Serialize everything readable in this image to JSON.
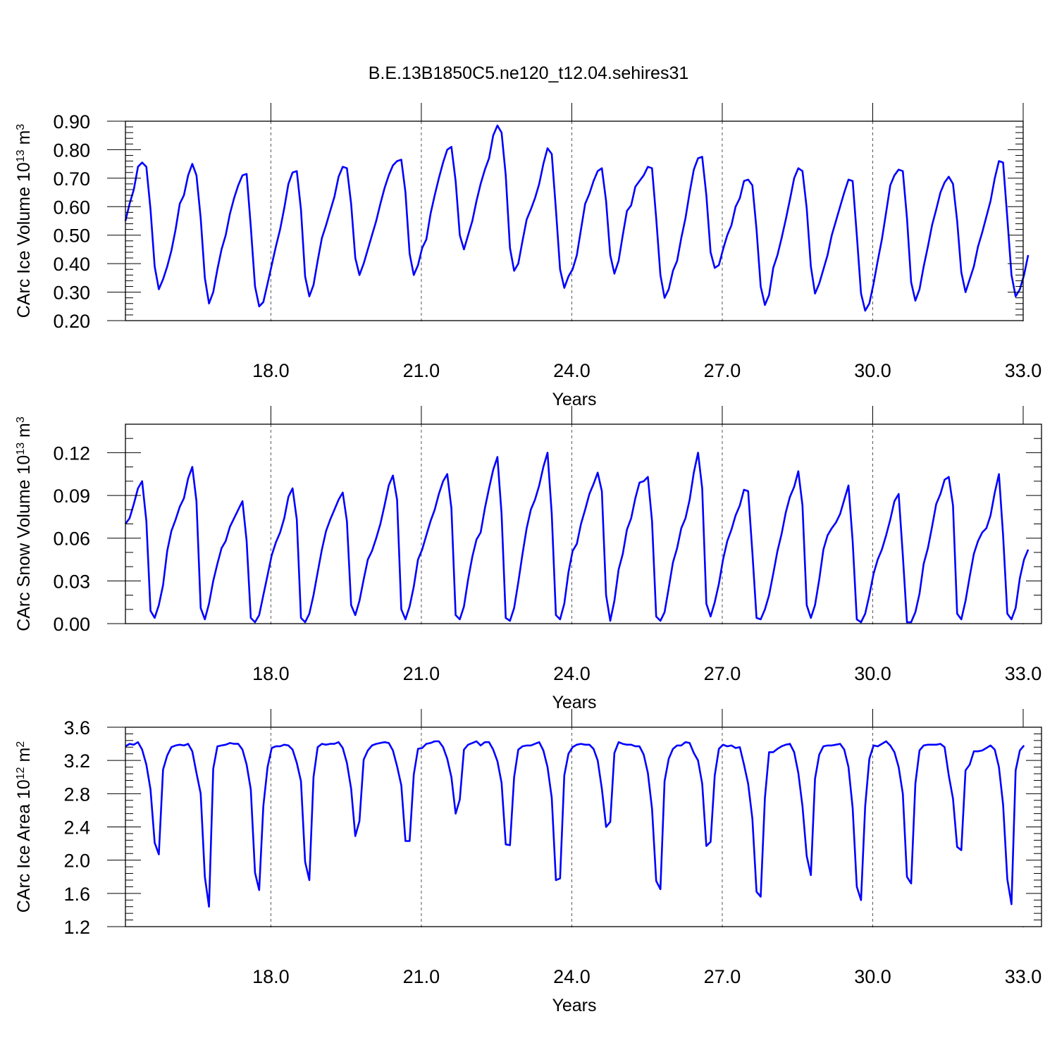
{
  "title": "B.E.13B1850C5.ne120_t12.04.sehires31",
  "chart_data": [
    {
      "type": "line",
      "ylabel": {
        "text": "CArc Ice Volume 10",
        "exp": "13",
        "unit": " m",
        "unit_exp": "3"
      },
      "xlabel": "Years",
      "xlim": [
        15.1,
        33.0
      ],
      "ylim": [
        0.2,
        0.9
      ],
      "xticks": [
        18.0,
        21.0,
        24.0,
        27.0,
        30.0,
        33.0
      ],
      "xtick_labels": [
        "18.0",
        "21.0",
        "24.0",
        "27.0",
        "30.0",
        "33.0"
      ],
      "yticks": [
        0.2,
        0.3,
        0.4,
        0.5,
        0.6,
        0.7,
        0.8,
        0.9
      ],
      "ytick_labels": [
        "0.20",
        "0.30",
        "0.40",
        "0.50",
        "0.60",
        "0.70",
        "0.80",
        "0.90"
      ],
      "ytick_minor_step": 0.02,
      "grid": "vertical dashed at major x ticks",
      "series": [
        {
          "color": "#0000ff",
          "x_start": 15.1,
          "x_step": 0.0833333,
          "values": [
            0.55,
            0.61,
            0.66,
            0.74,
            0.755,
            0.74,
            0.59,
            0.39,
            0.31,
            0.345,
            0.39,
            0.445,
            0.52,
            0.61,
            0.64,
            0.71,
            0.75,
            0.71,
            0.56,
            0.35,
            0.26,
            0.3,
            0.38,
            0.45,
            0.5,
            0.575,
            0.63,
            0.675,
            0.71,
            0.715,
            0.53,
            0.32,
            0.25,
            0.265,
            0.33,
            0.395,
            0.46,
            0.52,
            0.595,
            0.68,
            0.72,
            0.725,
            0.59,
            0.355,
            0.285,
            0.325,
            0.41,
            0.49,
            0.535,
            0.585,
            0.635,
            0.705,
            0.74,
            0.735,
            0.61,
            0.42,
            0.36,
            0.4,
            0.45,
            0.5,
            0.55,
            0.61,
            0.665,
            0.71,
            0.745,
            0.76,
            0.765,
            0.65,
            0.435,
            0.36,
            0.395,
            0.455,
            0.485,
            0.575,
            0.64,
            0.7,
            0.755,
            0.8,
            0.81,
            0.69,
            0.5,
            0.45,
            0.5,
            0.55,
            0.62,
            0.68,
            0.73,
            0.77,
            0.85,
            0.885,
            0.86,
            0.71,
            0.455,
            0.375,
            0.4,
            0.48,
            0.555,
            0.59,
            0.63,
            0.68,
            0.75,
            0.805,
            0.785,
            0.59,
            0.38,
            0.315,
            0.355,
            0.38,
            0.43,
            0.52,
            0.61,
            0.645,
            0.69,
            0.725,
            0.735,
            0.62,
            0.43,
            0.365,
            0.41,
            0.5,
            0.585,
            0.605,
            0.67,
            0.69,
            0.71,
            0.74,
            0.735,
            0.56,
            0.36,
            0.28,
            0.31,
            0.375,
            0.41,
            0.49,
            0.56,
            0.65,
            0.73,
            0.77,
            0.775,
            0.64,
            0.44,
            0.385,
            0.395,
            0.45,
            0.5,
            0.535,
            0.6,
            0.63,
            0.69,
            0.695,
            0.675,
            0.52,
            0.32,
            0.255,
            0.29,
            0.385,
            0.43,
            0.49,
            0.555,
            0.625,
            0.7,
            0.735,
            0.725,
            0.595,
            0.39,
            0.295,
            0.33,
            0.38,
            0.43,
            0.5,
            0.55,
            0.6,
            0.65,
            0.695,
            0.69,
            0.5,
            0.295,
            0.235,
            0.26,
            0.33,
            0.41,
            0.485,
            0.58,
            0.675,
            0.71,
            0.73,
            0.725,
            0.56,
            0.335,
            0.27,
            0.31,
            0.39,
            0.46,
            0.535,
            0.59,
            0.65,
            0.685,
            0.705,
            0.68,
            0.55,
            0.37,
            0.3,
            0.345,
            0.39,
            0.46,
            0.51,
            0.565,
            0.62,
            0.7,
            0.76,
            0.755,
            0.56,
            0.36,
            0.285,
            0.31,
            0.36,
            0.43
          ]
        }
      ]
    },
    {
      "type": "line",
      "ylabel": {
        "text": "CArc Snow Volume 10",
        "exp": "13",
        "unit": " m",
        "unit_exp": "3"
      },
      "xlabel": "Years",
      "xlim": [
        15.1,
        33.0
      ],
      "ylim": [
        0.0,
        0.14
      ],
      "xticks": [
        18.0,
        21.0,
        24.0,
        27.0,
        30.0,
        33.0
      ],
      "xtick_labels": [
        "18.0",
        "21.0",
        "24.0",
        "27.0",
        "30.0",
        "33.0"
      ],
      "yticks": [
        0.0,
        0.03,
        0.06,
        0.09,
        0.12
      ],
      "ytick_labels": [
        "0.00",
        "0.03",
        "0.06",
        "0.09",
        "0.12"
      ],
      "ytick_minor_step": 0.01,
      "grid": "vertical dashed at major x ticks",
      "series": [
        {
          "color": "#0000ff",
          "x_start": 15.1,
          "x_step": 0.0833333,
          "values": [
            0.07,
            0.074,
            0.084,
            0.095,
            0.1,
            0.072,
            0.009,
            0.004,
            0.013,
            0.027,
            0.051,
            0.065,
            0.073,
            0.082,
            0.088,
            0.102,
            0.11,
            0.086,
            0.011,
            0.003,
            0.014,
            0.03,
            0.042,
            0.053,
            0.058,
            0.068,
            0.074,
            0.08,
            0.086,
            0.058,
            0.004,
            0.001,
            0.006,
            0.02,
            0.034,
            0.048,
            0.057,
            0.064,
            0.074,
            0.089,
            0.095,
            0.073,
            0.004,
            0.001,
            0.007,
            0.02,
            0.036,
            0.052,
            0.065,
            0.073,
            0.08,
            0.087,
            0.092,
            0.072,
            0.013,
            0.006,
            0.016,
            0.031,
            0.045,
            0.051,
            0.06,
            0.07,
            0.083,
            0.097,
            0.104,
            0.087,
            0.01,
            0.003,
            0.012,
            0.026,
            0.045,
            0.052,
            0.062,
            0.072,
            0.08,
            0.091,
            0.1,
            0.105,
            0.081,
            0.006,
            0.003,
            0.012,
            0.031,
            0.047,
            0.059,
            0.064,
            0.081,
            0.095,
            0.108,
            0.117,
            0.077,
            0.004,
            0.002,
            0.011,
            0.029,
            0.049,
            0.067,
            0.08,
            0.087,
            0.097,
            0.11,
            0.12,
            0.077,
            0.006,
            0.003,
            0.014,
            0.036,
            0.051,
            0.056,
            0.07,
            0.08,
            0.091,
            0.098,
            0.106,
            0.093,
            0.02,
            0.002,
            0.016,
            0.038,
            0.049,
            0.066,
            0.074,
            0.088,
            0.099,
            0.1,
            0.103,
            0.072,
            0.005,
            0.002,
            0.008,
            0.025,
            0.043,
            0.053,
            0.067,
            0.074,
            0.087,
            0.106,
            0.12,
            0.095,
            0.014,
            0.005,
            0.015,
            0.028,
            0.045,
            0.058,
            0.066,
            0.076,
            0.083,
            0.094,
            0.093,
            0.05,
            0.004,
            0.003,
            0.01,
            0.02,
            0.035,
            0.051,
            0.063,
            0.078,
            0.089,
            0.096,
            0.107,
            0.083,
            0.013,
            0.004,
            0.013,
            0.031,
            0.052,
            0.062,
            0.067,
            0.071,
            0.077,
            0.087,
            0.097,
            0.058,
            0.003,
            0.001,
            0.007,
            0.02,
            0.035,
            0.045,
            0.052,
            0.062,
            0.073,
            0.086,
            0.091,
            0.048,
            0.001,
            0.001,
            0.008,
            0.021,
            0.042,
            0.053,
            0.068,
            0.084,
            0.091,
            0.101,
            0.103,
            0.083,
            0.007,
            0.003,
            0.016,
            0.033,
            0.049,
            0.058,
            0.064,
            0.067,
            0.076,
            0.092,
            0.105,
            0.062,
            0.007,
            0.003,
            0.011,
            0.032,
            0.045,
            0.052
          ]
        }
      ]
    },
    {
      "type": "line",
      "ylabel": {
        "text": "CArc Ice Area 10",
        "exp": "12",
        "unit": " m",
        "unit_exp": "2"
      },
      "xlabel": "Years",
      "xlim": [
        15.1,
        33.0
      ],
      "ylim": [
        1.2,
        3.6
      ],
      "xticks": [
        18.0,
        21.0,
        24.0,
        27.0,
        30.0,
        33.0
      ],
      "xtick_labels": [
        "18.0",
        "21.0",
        "24.0",
        "27.0",
        "30.0",
        "33.0"
      ],
      "yticks": [
        1.2,
        1.6,
        2.0,
        2.4,
        2.8,
        3.2,
        3.6
      ],
      "ytick_labels": [
        "1.2",
        "1.6",
        "2.0",
        "2.4",
        "2.8",
        "3.2",
        "3.6"
      ],
      "ytick_minor_step": 0.08,
      "grid": "vertical dashed at major x ticks",
      "series": [
        {
          "color": "#0000ff",
          "x_start": 15.1,
          "x_step": 0.0833333,
          "values": [
            3.37,
            3.4,
            3.39,
            3.42,
            3.33,
            3.15,
            2.85,
            2.21,
            2.07,
            3.09,
            3.26,
            3.36,
            3.38,
            3.39,
            3.38,
            3.4,
            3.31,
            3.05,
            2.8,
            1.8,
            1.44,
            3.1,
            3.37,
            3.38,
            3.39,
            3.41,
            3.4,
            3.4,
            3.33,
            3.15,
            2.85,
            1.85,
            1.64,
            2.65,
            3.12,
            3.35,
            3.37,
            3.37,
            3.39,
            3.38,
            3.33,
            3.17,
            2.95,
            1.98,
            1.76,
            3.0,
            3.36,
            3.4,
            3.39,
            3.4,
            3.4,
            3.42,
            3.35,
            3.17,
            2.86,
            2.29,
            2.47,
            3.21,
            3.32,
            3.38,
            3.4,
            3.41,
            3.42,
            3.41,
            3.32,
            3.13,
            2.9,
            2.23,
            2.23,
            3.03,
            3.34,
            3.35,
            3.4,
            3.41,
            3.43,
            3.43,
            3.36,
            3.22,
            3.0,
            2.56,
            2.73,
            3.33,
            3.39,
            3.41,
            3.43,
            3.38,
            3.42,
            3.42,
            3.33,
            3.19,
            2.93,
            2.19,
            2.18,
            3.0,
            3.33,
            3.37,
            3.38,
            3.38,
            3.4,
            3.42,
            3.32,
            3.12,
            2.75,
            1.76,
            1.78,
            3.02,
            3.28,
            3.36,
            3.39,
            3.4,
            3.39,
            3.39,
            3.34,
            3.2,
            2.86,
            2.4,
            2.46,
            3.29,
            3.42,
            3.4,
            3.39,
            3.39,
            3.37,
            3.37,
            3.27,
            3.05,
            2.62,
            1.75,
            1.65,
            2.95,
            3.22,
            3.34,
            3.38,
            3.38,
            3.42,
            3.41,
            3.29,
            3.2,
            2.92,
            2.17,
            2.22,
            3.02,
            3.34,
            3.39,
            3.37,
            3.38,
            3.35,
            3.36,
            3.15,
            2.92,
            2.5,
            1.62,
            1.56,
            2.75,
            3.3,
            3.3,
            3.34,
            3.37,
            3.39,
            3.4,
            3.3,
            3.05,
            2.65,
            2.05,
            1.82,
            2.98,
            3.27,
            3.37,
            3.38,
            3.38,
            3.39,
            3.4,
            3.33,
            3.12,
            2.63,
            1.68,
            1.52,
            2.65,
            3.22,
            3.38,
            3.37,
            3.4,
            3.43,
            3.38,
            3.3,
            3.12,
            2.8,
            1.8,
            1.72,
            2.92,
            3.32,
            3.38,
            3.39,
            3.39,
            3.39,
            3.4,
            3.36,
            3.02,
            2.74,
            2.16,
            2.12,
            3.08,
            3.15,
            3.31,
            3.31,
            3.32,
            3.35,
            3.38,
            3.33,
            3.12,
            2.67,
            1.77,
            1.47,
            3.08,
            3.32,
            3.38
          ]
        }
      ]
    }
  ]
}
